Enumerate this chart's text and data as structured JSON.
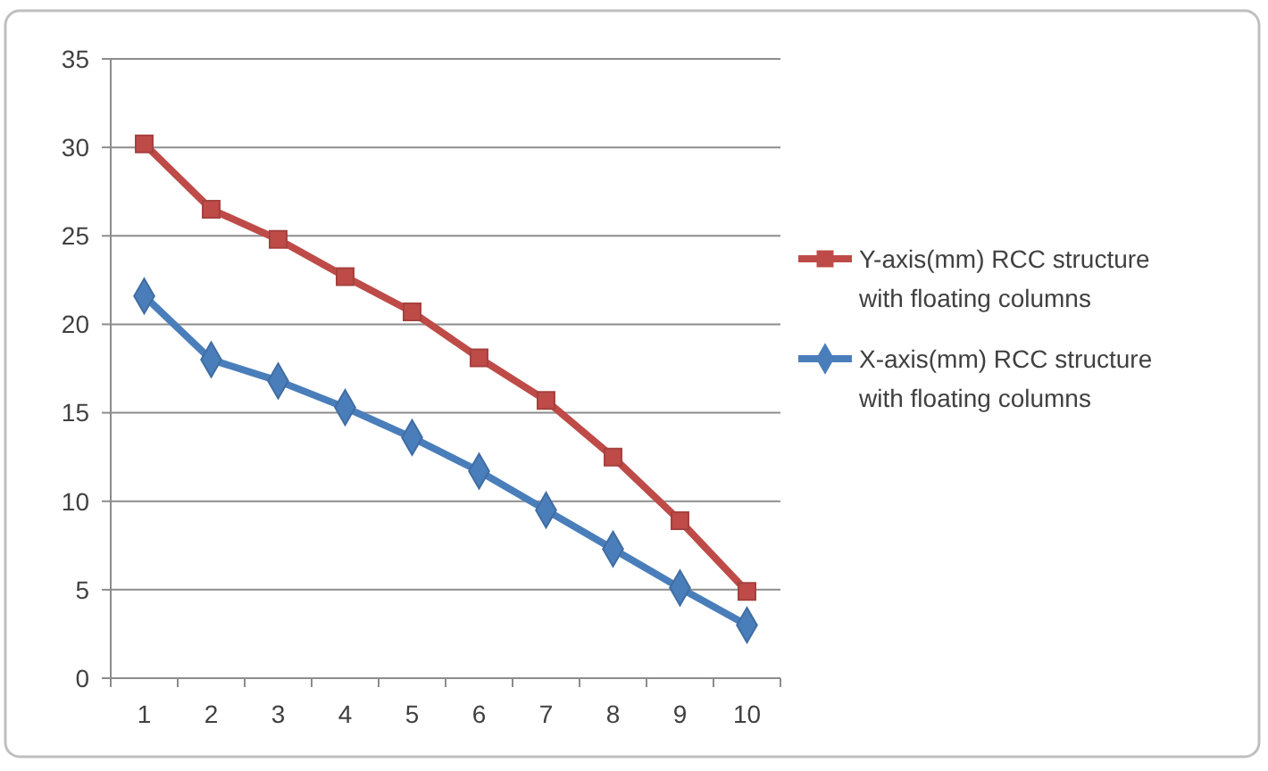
{
  "chart_data": {
    "type": "line",
    "categories": [
      "1",
      "2",
      "3",
      "4",
      "5",
      "6",
      "7",
      "8",
      "9",
      "10"
    ],
    "series": [
      {
        "name": "Y-axis(mm) RCC structure with floating columns",
        "color": "#be4b48",
        "marker": "square",
        "values": [
          30.2,
          26.5,
          24.8,
          22.7,
          20.7,
          18.1,
          15.7,
          12.5,
          8.9,
          4.9
        ]
      },
      {
        "name": "X-axis(mm) RCC structure with floating columns",
        "color": "#4a7ebb",
        "marker": "diamond",
        "values": [
          21.6,
          18.0,
          16.8,
          15.3,
          13.6,
          11.7,
          9.5,
          7.3,
          5.1,
          3.0
        ]
      }
    ],
    "ylim": [
      0,
      35
    ],
    "yticks": [
      0,
      5,
      10,
      15,
      20,
      25,
      30,
      35
    ],
    "grid": "y",
    "legend": "right",
    "line_style": "solid"
  }
}
